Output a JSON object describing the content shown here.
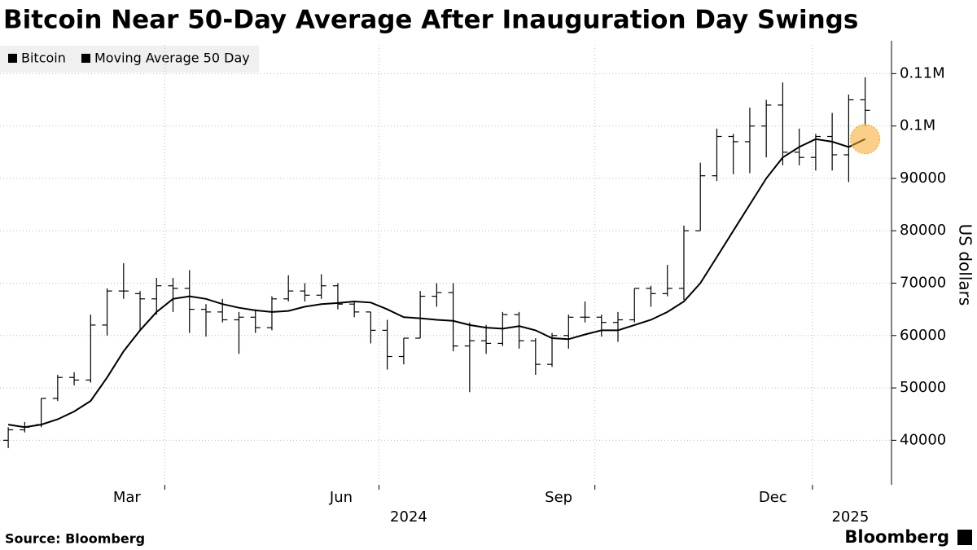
{
  "chart_data": {
    "type": "candlestick",
    "title": "Bitcoin Near 50-Day Average After Inauguration Day Swings",
    "y_label": "US dollars",
    "source": "Source: Bloomberg",
    "brand": "Bloomberg",
    "series": [
      {
        "name": "Bitcoin",
        "color": "#000000",
        "open": [
          40000,
          42000,
          43000,
          48000,
          52000,
          51500,
          62000,
          68500,
          68000,
          67000,
          69500,
          69000,
          65000,
          64500,
          63000,
          63500,
          61500,
          67000,
          68500,
          67700,
          69500,
          66000,
          64500,
          61000,
          56000,
          59500,
          67500,
          68200,
          58000,
          59000,
          58500,
          64000,
          59000,
          54500,
          60000,
          63500,
          63500,
          62500,
          63000,
          69000,
          68000,
          69000,
          80000,
          90500,
          98000,
          97000,
          100000,
          104000,
          95000,
          94000,
          98000,
          94500,
          105000
        ],
        "high": [
          42500,
          43500,
          48000,
          52500,
          53000,
          64000,
          69000,
          73800,
          68500,
          71000,
          71000,
          72500,
          66000,
          67000,
          64500,
          65000,
          67500,
          71500,
          70000,
          71700,
          70000,
          66500,
          64500,
          63000,
          59500,
          68500,
          70000,
          70000,
          62500,
          62000,
          64500,
          64500,
          59500,
          60500,
          64000,
          66500,
          64000,
          64500,
          69000,
          69500,
          73500,
          81000,
          93000,
          99500,
          98500,
          103500,
          105000,
          108300,
          99500,
          98500,
          102500,
          106000,
          109300
        ],
        "low": [
          38500,
          41500,
          42500,
          47500,
          50500,
          51000,
          60000,
          67000,
          61000,
          64000,
          64500,
          60500,
          59800,
          62500,
          56500,
          60500,
          61000,
          66500,
          66500,
          67000,
          65000,
          63500,
          58500,
          53500,
          54500,
          59500,
          65500,
          57000,
          49200,
          56500,
          58000,
          57500,
          52500,
          54000,
          57500,
          62500,
          59800,
          58800,
          62500,
          65500,
          67500,
          66800,
          80000,
          89500,
          90800,
          91000,
          94000,
          92500,
          92500,
          91500,
          91500,
          89300,
          100000
        ],
        "close": [
          42000,
          42500,
          48000,
          52000,
          51500,
          62000,
          68500,
          68500,
          67000,
          69500,
          69000,
          65000,
          64500,
          63000,
          63500,
          61500,
          67000,
          68500,
          67700,
          69500,
          66000,
          64500,
          61000,
          56000,
          59500,
          67500,
          68200,
          58000,
          59000,
          58500,
          64000,
          59000,
          54500,
          60000,
          63500,
          63500,
          62500,
          63000,
          69000,
          68000,
          69000,
          80000,
          90500,
          98000,
          97000,
          100000,
          104000,
          95000,
          94000,
          98000,
          94500,
          105000,
          103000
        ]
      },
      {
        "name": "Moving Average 50 Day",
        "color": "#000000",
        "values": [
          43000,
          42500,
          43000,
          44000,
          45500,
          47500,
          52000,
          57000,
          61000,
          64500,
          67000,
          67500,
          67000,
          66000,
          65300,
          64800,
          64500,
          64700,
          65500,
          66000,
          66200,
          66500,
          66300,
          65000,
          63500,
          63300,
          63000,
          62800,
          62000,
          61500,
          61300,
          61800,
          61000,
          59500,
          59300,
          60200,
          61000,
          61000,
          62000,
          63000,
          64500,
          66500,
          70000,
          75000,
          80000,
          85000,
          90000,
          94000,
          96000,
          97500,
          97000,
          96000,
          97500
        ]
      }
    ],
    "xlim": [
      -0.5,
      53.6
    ],
    "xticks": [
      {
        "value": 7.2,
        "label": "Mar"
      },
      {
        "value": 20.2,
        "label": "Jun"
      },
      {
        "value": 33.4,
        "label": "Sep"
      },
      {
        "value": 46.4,
        "label": "Dec"
      }
    ],
    "year_ticks": [
      {
        "value": 24.3,
        "label": "2024"
      },
      {
        "value": 51.1,
        "label": "2025"
      }
    ],
    "xgrid": [
      9.5,
      22.5,
      35.6,
      48.8
    ],
    "ylim": [
      31500,
      115500
    ],
    "yticks": [
      40000,
      50000,
      60000,
      70000,
      80000,
      90000,
      {
        "value": 100000,
        "label": "0.1M"
      },
      {
        "value": 110000,
        "label": "0.11M"
      }
    ],
    "grid": true
  }
}
